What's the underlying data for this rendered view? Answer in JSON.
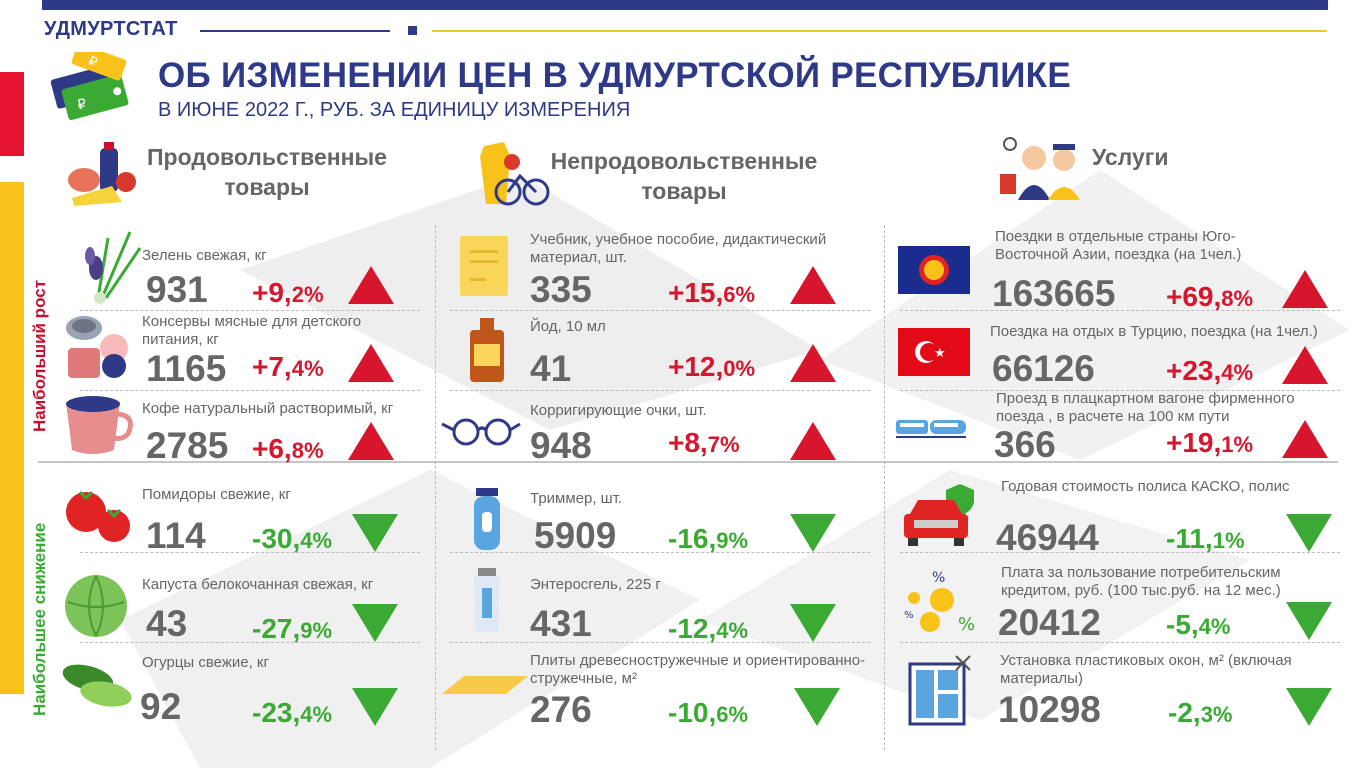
{
  "header": {
    "brand": "УДМУРТСТАТ",
    "title": "ОБ ИЗМЕНЕНИИ ЦЕН В УДМУРТСКОЙ РЕСПУБЛИКЕ",
    "subtitle": "В ИЮНЕ 2022 Г., РУБ. ЗА ЕДИНИЦУ ИЗМЕРЕНИЯ"
  },
  "side_labels": {
    "growth": "Наибольший рост",
    "decline": "Наибольшее снижение"
  },
  "categories": {
    "food": {
      "line1": "Продовольственные",
      "line2": "товары"
    },
    "nonfood": {
      "line1": "Непродовольственные",
      "line2": "товары"
    },
    "services": {
      "line1": "Услуги",
      "line2": ""
    }
  },
  "items": {
    "food_up_1": {
      "name": "Зелень свежая, кг",
      "price": "931",
      "pct_main": "+9,",
      "pct_dec": "2%"
    },
    "food_up_2": {
      "name": "Консервы мясные для детского питания, кг",
      "price": "1165",
      "pct_main": "+7,",
      "pct_dec": "4%"
    },
    "food_up_3": {
      "name": "Кофе натуральный растворимый, кг",
      "price": "2785",
      "pct_main": "+6,",
      "pct_dec": "8%"
    },
    "food_down_1": {
      "name": "Помидоры свежие, кг",
      "price": "114",
      "pct_main": "-30,",
      "pct_dec": "4%"
    },
    "food_down_2": {
      "name": "Капуста белокочанная  свежая, кг",
      "price": "43",
      "pct_main": "-27,",
      "pct_dec": "9%"
    },
    "food_down_3": {
      "name": "Огурцы свежие, кг",
      "price": "92",
      "pct_main": "-23,",
      "pct_dec": "4%"
    },
    "nonfood_up_1": {
      "name": "Учебник, учебное пособие, дидактический материал, шт.",
      "price": "335",
      "pct_main": "+15,",
      "pct_dec": "6%"
    },
    "nonfood_up_2": {
      "name": "Йод, 10 мл",
      "price": "41",
      "pct_main": "+12,",
      "pct_dec": "0%"
    },
    "nonfood_up_3": {
      "name": "Корригирующие очки, шт.",
      "price": "948",
      "pct_main": "+8,",
      "pct_dec": "7%"
    },
    "nonfood_down_1": {
      "name": "Триммер, шт.",
      "price": "5909",
      "pct_main": "-16,",
      "pct_dec": "9%"
    },
    "nonfood_down_2": {
      "name": "Энтеросгель, 225 г",
      "price": "431",
      "pct_main": "-12,",
      "pct_dec": "4%"
    },
    "nonfood_down_3": {
      "name": "Плиты древесностружечные  и ориентированно-стружечные,  м²",
      "price": "276",
      "pct_main": "-10,",
      "pct_dec": "6%"
    },
    "serv_up_1": {
      "name": "Поездки в отдельные страны Юго-Восточной Азии, поездка (на 1чел.)",
      "price": "163665",
      "pct_main": "+69,",
      "pct_dec": "8%"
    },
    "serv_up_2": {
      "name": "Поездка на отдых в Турцию, поездка (на 1чел.)",
      "price": "66126",
      "pct_main": "+23,",
      "pct_dec": "4%"
    },
    "serv_up_3": {
      "name": "Проезд в плацкартном вагоне фирменного поезда , в расчете на 100 км пути",
      "price": "366",
      "pct_main": "+19,",
      "pct_dec": "1%"
    },
    "serv_down_1": {
      "name": "Годовая стоимость полиса КАСКО, полис",
      "price": "46944",
      "pct_main": "-11,",
      "pct_dec": "1%"
    },
    "serv_down_2": {
      "name": "Плата за пользование потребительским кредитом, руб. (100 тыс.руб. на 12 мес.)",
      "price": "20412",
      "pct_main": "-5,",
      "pct_dec": "4%"
    },
    "serv_down_3": {
      "name": "Установка пластиковых окон, м² (включая материалы)",
      "price": "10298",
      "pct_main": "-2,",
      "pct_dec": "3%"
    }
  },
  "colors": {
    "navy": "#2e3a87",
    "red": "#d7152c",
    "green": "#3aaa35",
    "yellow": "#f9c21b"
  }
}
